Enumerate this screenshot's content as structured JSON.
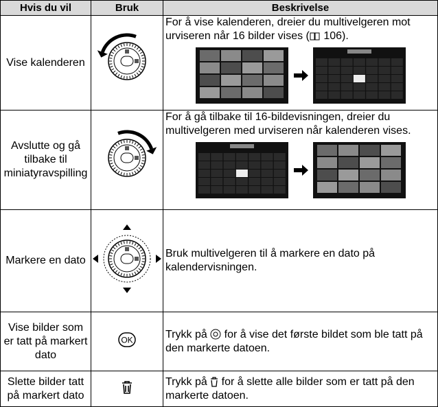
{
  "table": {
    "header": [
      "Hvis du vil",
      "Bruk",
      "Beskrivelse"
    ],
    "ok_label": "OK",
    "rows": [
      {
        "action": "Vise kalenderen",
        "description": [
          "For å vise kalenderen, dreier du multivelgeren mot urviseren når 16 bilder vises (",
          "106",
          ")."
        ]
      },
      {
        "action": "Avslutte og gå tilbake til miniatyravspilling",
        "description": [
          "For å gå tilbake til 16-bildevisningen, dreier du multivelgeren med urviseren når kalenderen vises."
        ]
      },
      {
        "action": "Markere en dato",
        "description": [
          "Bruk multivelgeren til å markere en dato på kalendervisningen."
        ]
      },
      {
        "action": "Vise bilder som er tatt på markert dato",
        "description": [
          "Trykk på ",
          " for å vise det første bildet som ble tatt på den markerte datoen."
        ]
      },
      {
        "action": "Slette bilder tatt på markert dato",
        "description": [
          "Trykk på ",
          " for å slette alle bilder som er tatt på den markerte datoen."
        ]
      }
    ]
  }
}
